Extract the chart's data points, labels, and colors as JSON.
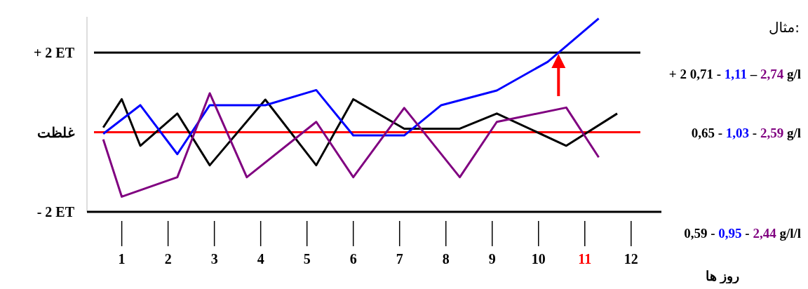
{
  "chart_data": {
    "type": "line",
    "title": "مثال:",
    "xlabel": "روز ها",
    "xlim": [
      0.4,
      12.2
    ],
    "xticks": [
      1,
      2,
      3,
      4,
      5,
      6,
      7,
      8,
      9,
      10,
      11,
      12
    ],
    "ylim": [
      -2,
      2.9
    ],
    "yticks": [
      {
        "value": -2,
        "label": "- 2 ET"
      },
      {
        "value": 0,
        "label": "غلظت"
      },
      {
        "value": 2,
        "label": "+ 2 ET"
      }
    ],
    "annotations": [
      "+ 2 0,71 - 1,11 – 2,74 g/l",
      "0,65 - 1,03 - 2,59 g/l",
      "0,59 - 0,95 - 2,44 g/l/l"
    ],
    "series": [
      {
        "color": "#000000",
        "x": [
          0.6,
          1.0,
          1.4,
          2.2,
          2.9,
          4.1,
          5.2,
          6.0,
          7.1,
          8.3,
          9.1,
          10.6,
          11.7
        ],
        "values": [
          0.12,
          0.83,
          -0.34,
          0.47,
          -0.83,
          0.82,
          -0.83,
          0.83,
          0.09,
          0.09,
          0.47,
          -0.34,
          0.47
        ]
      },
      {
        "color": "#0000ff",
        "x": [
          0.6,
          1.4,
          2.2,
          2.9,
          4.1,
          5.2,
          6.0,
          7.1,
          7.9,
          9.1,
          10.2,
          11.3
        ],
        "values": [
          -0.04,
          0.68,
          -0.55,
          0.68,
          0.68,
          1.06,
          -0.08,
          -0.08,
          0.68,
          1.05,
          1.77,
          2.86
        ]
      },
      {
        "color": "#800080",
        "x": [
          0.6,
          1.0,
          2.2,
          2.9,
          3.7,
          5.2,
          6.0,
          7.1,
          8.3,
          9.1,
          10.6,
          11.3
        ],
        "values": [
          -0.18,
          -1.62,
          -1.13,
          0.98,
          -1.13,
          0.26,
          -1.13,
          0.61,
          -1.13,
          0.26,
          0.62,
          -0.63
        ]
      }
    ],
    "ref_lines": [
      {
        "axis": "y",
        "value": 2,
        "color": "#000000"
      },
      {
        "axis": "y",
        "value": 0,
        "color": "#ff0000"
      },
      {
        "axis": "y",
        "value": -2,
        "color": "#000000"
      }
    ],
    "line_style": "solid"
  }
}
